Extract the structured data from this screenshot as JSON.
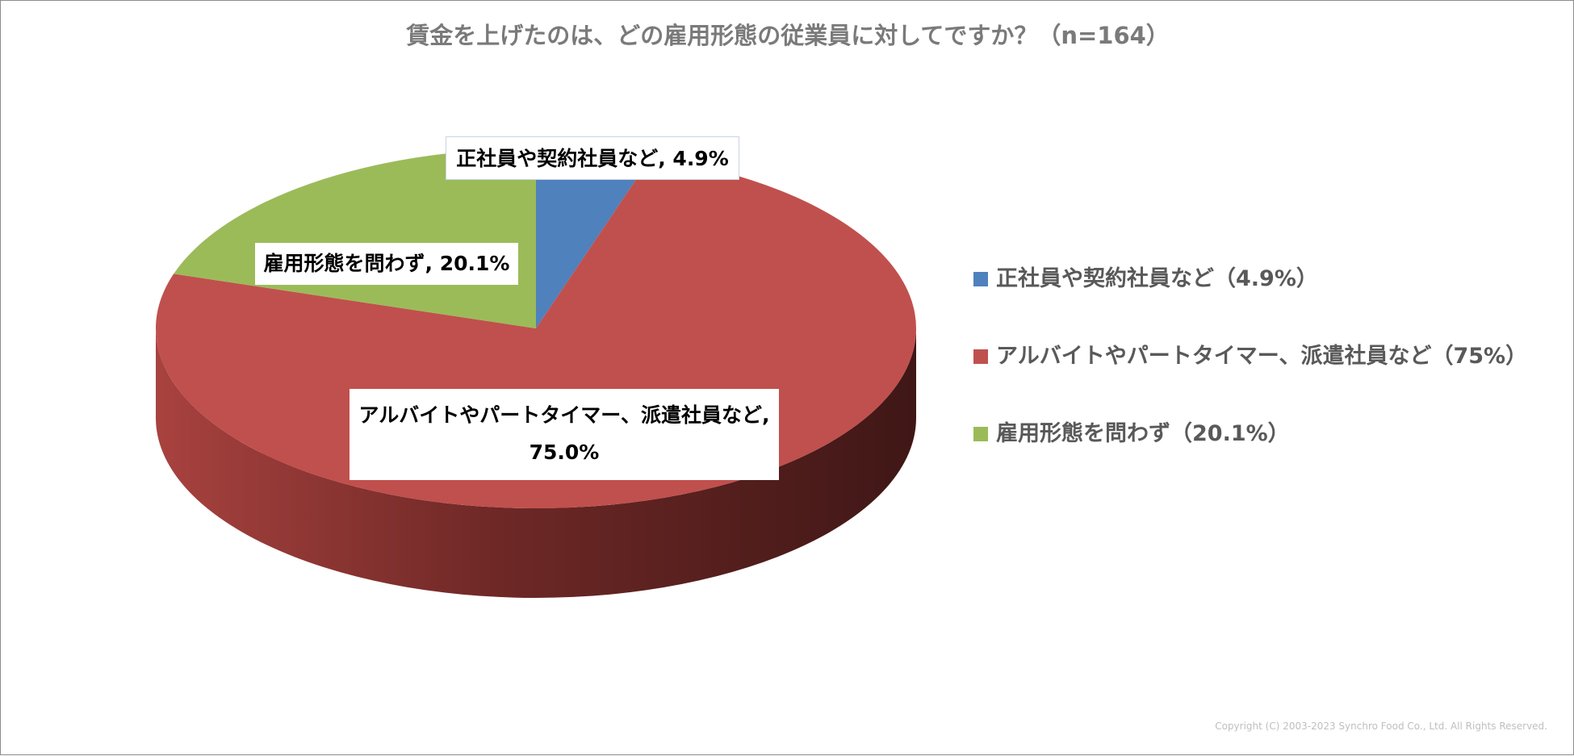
{
  "title": "賃金を上げたのは、どの雇用形態の従業員に対してですか？（n=164）",
  "copyright": "Copyright (C) 2003-2023   Synchro Food Co., Ltd. All Rights Reserved.",
  "chart_data": {
    "type": "pie",
    "title": "賃金を上げたのは、どの雇用形態の従業員に対してですか？（n=164）",
    "n": 164,
    "slices": [
      {
        "name": "正社員や契約社員など",
        "value": 4.9,
        "color": "#4f81bd"
      },
      {
        "name": "アルバイトやパートタイマー、派遣社員など",
        "value": 75.0,
        "color": "#c0504d"
      },
      {
        "name": "雇用形態を問わず",
        "value": 20.1,
        "color": "#9bbb59"
      }
    ],
    "data_labels": [
      {
        "text": "正社員や契約社員など, 4.9%"
      },
      {
        "line1": "アルバイトやパートタイマー、派遣社員など,",
        "line2": "75.0%"
      },
      {
        "text": "雇用形態を問わず, 20.1%"
      }
    ],
    "legend": {
      "position": "right",
      "items": [
        "正社員や契約社員など（4.9%）",
        "アルバイトやパートタイマー、派遣社員など（75%）",
        "雇用形態を問わず（20.1%）"
      ]
    },
    "style": "3d"
  }
}
